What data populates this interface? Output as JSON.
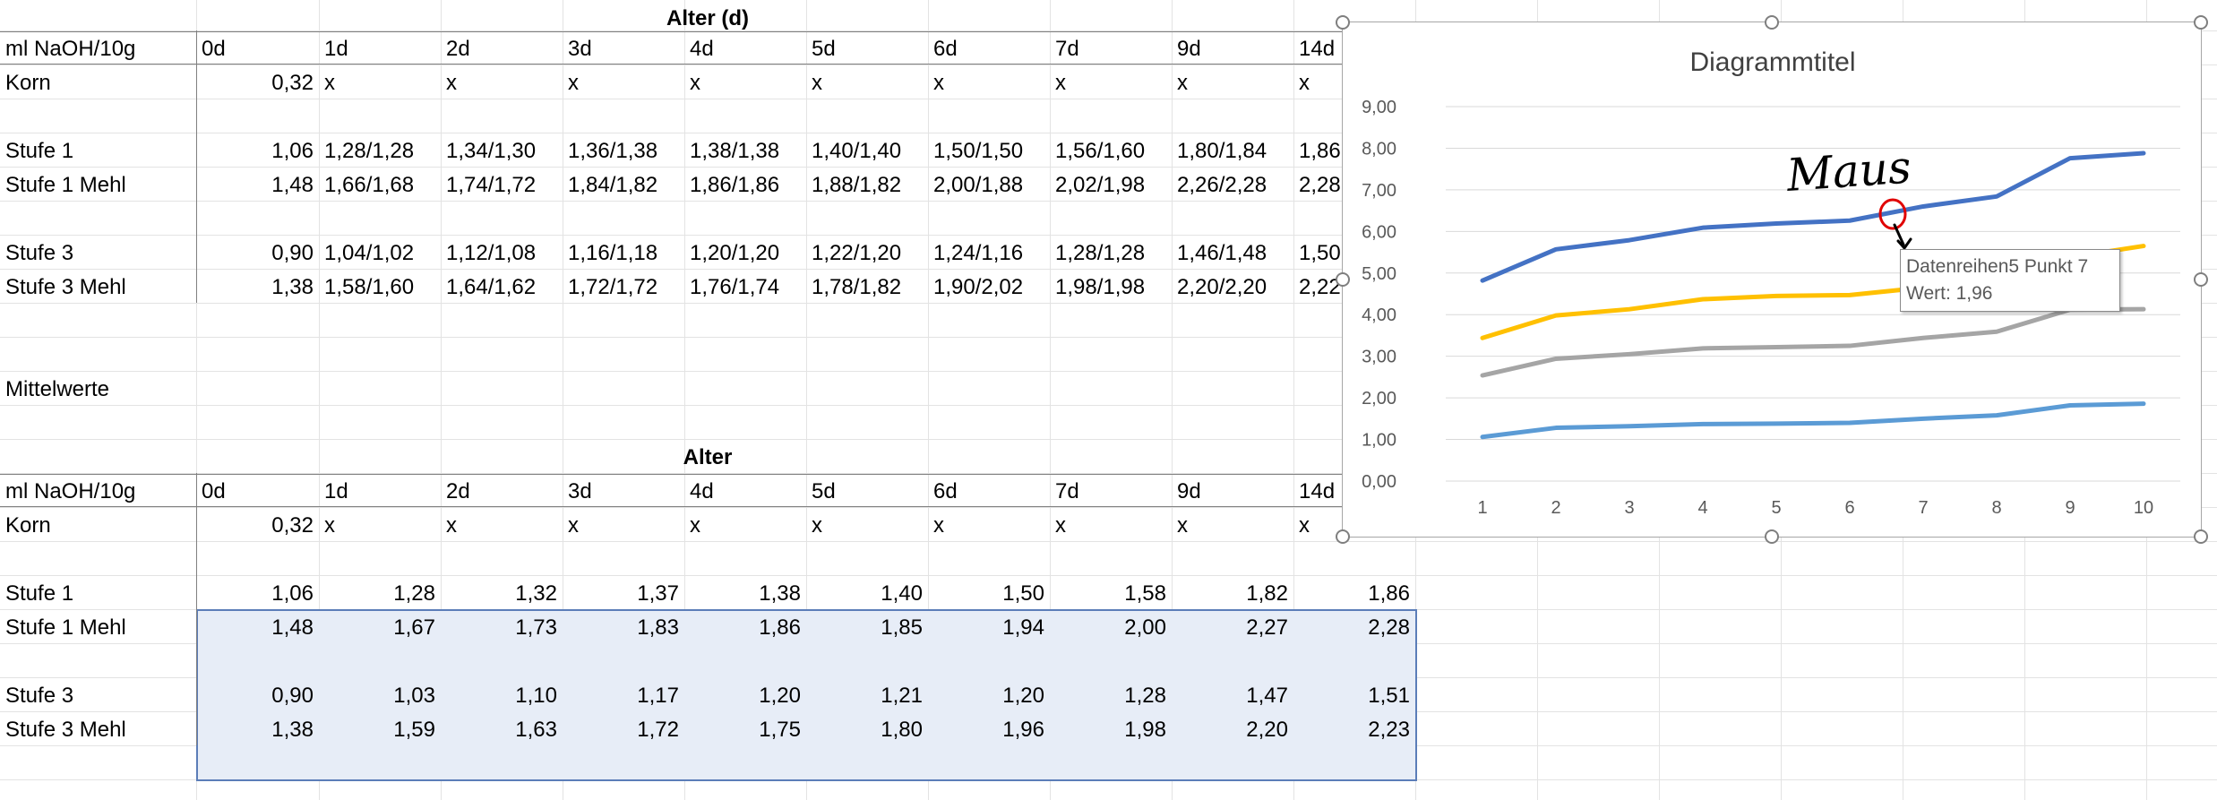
{
  "table1": {
    "header_title": "Alter (d)",
    "corner_label": "ml NaOH/10g",
    "days": [
      "0d",
      "1d",
      "2d",
      "3d",
      "4d",
      "5d",
      "6d",
      "7d",
      "9d",
      "14d"
    ],
    "rows": [
      {
        "label": "Korn",
        "values": [
          "0,32",
          "x",
          "x",
          "x",
          "x",
          "x",
          "x",
          "x",
          "x",
          "x"
        ]
      },
      {
        "label": "Stufe 1",
        "values": [
          "1,06",
          "1,28/1,28",
          "1,34/1,30",
          "1,36/1,38",
          "1,38/1,38",
          "1,40/1,40",
          "1,50/1,50",
          "1,56/1,60",
          "1,80/1,84",
          "1,86"
        ]
      },
      {
        "label": "Stufe 1 Mehl",
        "values": [
          "1,48",
          "1,66/1,68",
          "1,74/1,72",
          "1,84/1,82",
          "1,86/1,86",
          "1,88/1,82",
          "2,00/1,88",
          "2,02/1,98",
          "2,26/2,28",
          "2,28"
        ]
      },
      {
        "label": "Stufe 3",
        "values": [
          "0,90",
          "1,04/1,02",
          "1,12/1,08",
          "1,16/1,18",
          "1,20/1,20",
          "1,22/1,20",
          "1,24/1,16",
          "1,28/1,28",
          "1,46/1,48",
          "1,50"
        ]
      },
      {
        "label": "Stufe 3 Mehl",
        "values": [
          "1,38",
          "1,58/1,60",
          "1,64/1,62",
          "1,72/1,72",
          "1,76/1,74",
          "1,78/1,82",
          "1,90/2,02",
          "1,98/1,98",
          "2,20/2,20",
          "2,22"
        ]
      }
    ]
  },
  "mittelwerte_label": "Mittelwerte",
  "table2": {
    "header_title": "Alter",
    "corner_label": "ml NaOH/10g",
    "days": [
      "0d",
      "1d",
      "2d",
      "3d",
      "4d",
      "5d",
      "6d",
      "7d",
      "9d",
      "14d"
    ],
    "rows": [
      {
        "label": "Korn",
        "values": [
          "0,32",
          "x",
          "x",
          "x",
          "x",
          "x",
          "x",
          "x",
          "x",
          "x"
        ]
      },
      {
        "label": "Stufe 1",
        "values": [
          "1,06",
          "1,28",
          "1,32",
          "1,37",
          "1,38",
          "1,40",
          "1,50",
          "1,58",
          "1,82",
          "1,86"
        ]
      },
      {
        "label": "Stufe 1 Mehl",
        "values": [
          "1,48",
          "1,67",
          "1,73",
          "1,83",
          "1,86",
          "1,85",
          "1,94",
          "2,00",
          "2,27",
          "2,28"
        ]
      },
      {
        "label": "Stufe 3",
        "values": [
          "0,90",
          "1,03",
          "1,10",
          "1,17",
          "1,20",
          "1,21",
          "1,20",
          "1,28",
          "1,47",
          "1,51"
        ]
      },
      {
        "label": "Stufe 3 Mehl",
        "values": [
          "1,38",
          "1,59",
          "1,63",
          "1,72",
          "1,75",
          "1,80",
          "1,96",
          "1,98",
          "2,20",
          "2,23"
        ]
      }
    ]
  },
  "annotation_text": "Maus",
  "tooltip": {
    "line1": "Datenreihen5 Punkt 7",
    "line2": "Wert: 1,96"
  },
  "colors": {
    "blue_dark": "#4472c4",
    "yellow": "#ffc000",
    "gray": "#a5a5a5",
    "blue_light": "#5b9bd5",
    "annotation_red": "#e00000",
    "selection_fill": "#e7edf7",
    "selection_border": "#5b7db8"
  },
  "chart_data": {
    "type": "line",
    "title": "Diagrammtitel",
    "categories": [
      "1",
      "2",
      "3",
      "4",
      "5",
      "6",
      "7",
      "8",
      "9",
      "10"
    ],
    "y_tick_labels": [
      "0,00",
      "1,00",
      "2,00",
      "3,00",
      "4,00",
      "5,00",
      "6,00",
      "7,00",
      "8,00",
      "9,00"
    ],
    "ylim": [
      0,
      9
    ],
    "grid": true,
    "series": [
      {
        "color": "#4472c4",
        "values": [
          4.82,
          5.57,
          5.79,
          6.09,
          6.19,
          6.26,
          6.6,
          6.84,
          7.76,
          7.88
        ]
      },
      {
        "color": "#ffc000",
        "values": [
          3.44,
          3.98,
          4.13,
          4.37,
          4.45,
          4.47,
          4.65,
          4.88,
          5.38,
          5.65
        ]
      },
      {
        "color": "#a5a5a5",
        "values": [
          2.54,
          2.94,
          3.05,
          3.19,
          3.22,
          3.25,
          3.44,
          3.59,
          4.12,
          4.13
        ]
      },
      {
        "color": "#5b9bd5",
        "values": [
          1.06,
          1.28,
          1.32,
          1.37,
          1.38,
          1.4,
          1.5,
          1.58,
          1.82,
          1.86
        ]
      }
    ]
  }
}
